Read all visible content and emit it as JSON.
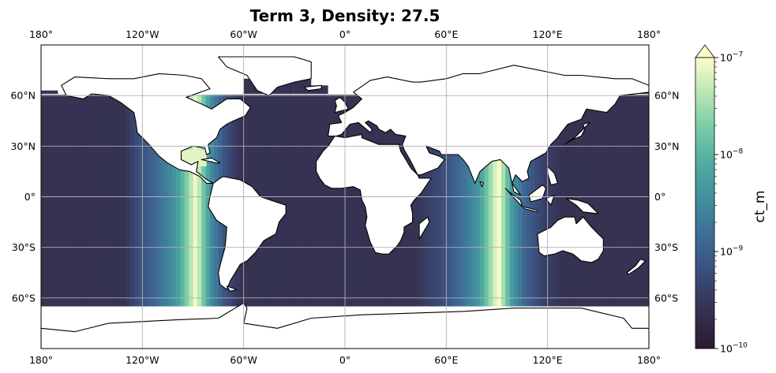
{
  "title": "Term 3, Density: 27.5",
  "colorbar": {
    "label": "ct_m",
    "scale": "log",
    "min": 1e-10,
    "max": 1e-07,
    "extend": "max",
    "ticks": [
      {
        "value": 1e-07,
        "base": "10",
        "exp": "−7"
      },
      {
        "value": 1e-08,
        "base": "10",
        "exp": "−8"
      },
      {
        "value": 1e-09,
        "base": "10",
        "exp": "−9"
      },
      {
        "value": 1e-10,
        "base": "10",
        "exp": "−10"
      }
    ],
    "colormap": "deep",
    "colors": [
      "#2a1b32",
      "#35304f",
      "#3b4a78",
      "#3e6a95",
      "#408a9e",
      "#4fa9a1",
      "#74c9a6",
      "#b7e6b3",
      "#fdfecc"
    ]
  },
  "map": {
    "projection": "PlateCarree",
    "lon_range": [
      -180,
      180
    ],
    "lat_range": [
      -90,
      90
    ],
    "gridlines": true,
    "lon_ticks": [
      {
        "value": -180,
        "label": "180°"
      },
      {
        "value": -120,
        "label": "120°W"
      },
      {
        "value": -60,
        "label": "60°W"
      },
      {
        "value": 0,
        "label": "0°"
      },
      {
        "value": 60,
        "label": "60°E"
      },
      {
        "value": 120,
        "label": "120°E"
      },
      {
        "value": 180,
        "label": "180°"
      }
    ],
    "lat_ticks": [
      {
        "value": 60,
        "label": "60°N"
      },
      {
        "value": 30,
        "label": "30°N"
      },
      {
        "value": 0,
        "label": "0°"
      },
      {
        "value": -30,
        "label": "30°S"
      },
      {
        "value": -60,
        "label": "60°S"
      }
    ],
    "field_description": "log10 ct_m by longitude; peaks near 90°W and 90°E",
    "field_by_longitude": [
      {
        "lon": -180,
        "log10": -9.6
      },
      {
        "lon": -130,
        "log10": -9.6
      },
      {
        "lon": -125,
        "log10": -9.3
      },
      {
        "lon": -115,
        "log10": -9.0
      },
      {
        "lon": -105,
        "log10": -8.6
      },
      {
        "lon": -98,
        "log10": -8.2
      },
      {
        "lon": -93,
        "log10": -7.6
      },
      {
        "lon": -88,
        "log10": -7.0
      },
      {
        "lon": -85,
        "log10": -7.6
      },
      {
        "lon": -80,
        "log10": -8.4
      },
      {
        "lon": -72,
        "log10": -9.1
      },
      {
        "lon": -62,
        "log10": -9.6
      },
      {
        "lon": 40,
        "log10": -9.6
      },
      {
        "lon": 50,
        "log10": -9.4
      },
      {
        "lon": 62,
        "log10": -9.1
      },
      {
        "lon": 72,
        "log10": -8.7
      },
      {
        "lon": 80,
        "log10": -8.3
      },
      {
        "lon": 84,
        "log10": -7.8
      },
      {
        "lon": 88,
        "log10": -7.3
      },
      {
        "lon": 91,
        "log10": -7.0
      },
      {
        "lon": 94,
        "log10": -7.5
      },
      {
        "lon": 98,
        "log10": -8.2
      },
      {
        "lon": 106,
        "log10": -8.9
      },
      {
        "lon": 118,
        "log10": -9.4
      },
      {
        "lon": 130,
        "log10": -9.6
      },
      {
        "lon": 180,
        "log10": -9.6
      }
    ]
  }
}
